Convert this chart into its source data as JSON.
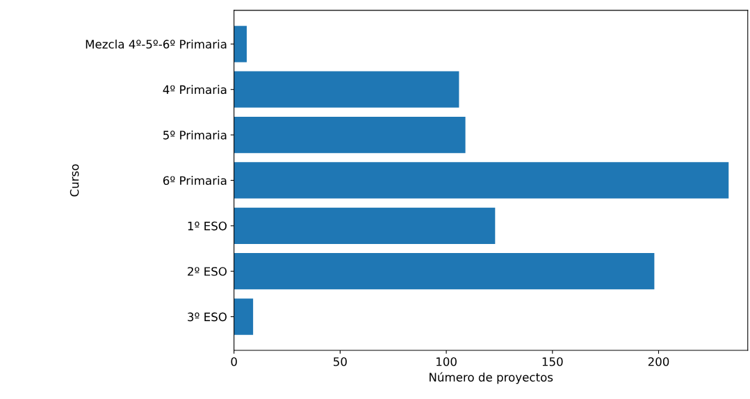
{
  "chart_data": {
    "type": "bar",
    "orientation": "horizontal",
    "xlabel": "Número de proyectos",
    "ylabel": "Curso",
    "categories": [
      "Mezcla 4º-5º-6º Primaria",
      "4º Primaria",
      "5º Primaria",
      "6º Primaria",
      "1º ESO",
      "2º ESO",
      "3º ESO"
    ],
    "values": [
      6,
      106,
      109,
      233,
      123,
      198,
      9
    ],
    "color": "#1f77b4",
    "xlim": [
      0,
      242
    ],
    "xticks": [
      0,
      50,
      100,
      150,
      200
    ],
    "grid": false
  }
}
